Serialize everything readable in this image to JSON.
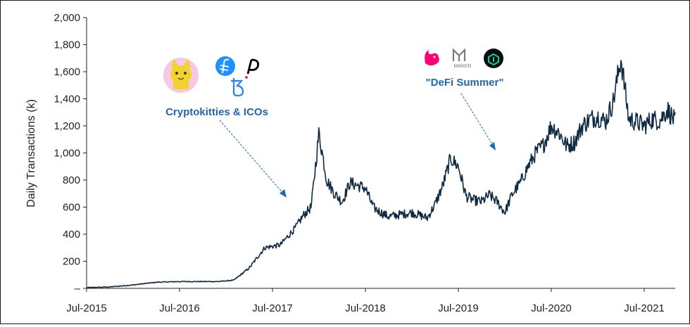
{
  "chart_data": {
    "type": "line",
    "title": "",
    "ylabel": "Daily Transactions (k)",
    "xlabel": "",
    "ylim": [
      0,
      2000
    ],
    "y_ticks": [
      "–",
      "200",
      "400",
      "600",
      "800",
      "1,000",
      "1,200",
      "1,400",
      "1,600",
      "1,800",
      "2,000"
    ],
    "x_ticks": [
      "Jul-2015",
      "Jul-2016",
      "Jul-2017",
      "Jul-2018",
      "Jul-2019",
      "Jul-2020",
      "Jul-2021"
    ],
    "grid": false,
    "legend": "none",
    "series": [
      {
        "x": [
          "2015-07",
          "2015-10",
          "2016-01",
          "2016-04",
          "2016-07",
          "2016-10",
          "2016-12",
          "2017-02",
          "2017-04",
          "2017-06",
          "2017-08",
          "2017-10",
          "2017-11",
          "2017-12",
          "2018-01",
          "2018-02",
          "2018-03",
          "2018-04",
          "2018-05",
          "2018-06",
          "2018-07",
          "2018-08",
          "2018-09",
          "2018-10",
          "2018-11",
          "2018-12",
          "2019-01",
          "2019-02",
          "2019-03",
          "2019-04",
          "2019-05",
          "2019-06",
          "2019-07",
          "2019-08",
          "2019-09",
          "2019-10",
          "2019-11",
          "2019-12",
          "2020-01",
          "2020-02",
          "2020-03",
          "2020-04",
          "2020-05",
          "2020-06",
          "2020-07",
          "2020-08",
          "2020-09",
          "2020-10",
          "2020-11",
          "2020-12",
          "2021-01",
          "2021-02",
          "2021-03",
          "2021-04",
          "2021-05",
          "2021-06",
          "2021-07",
          "2021-08",
          "2021-09",
          "2021-10",
          "2021-11"
        ],
        "values": [
          5,
          10,
          25,
          45,
          50,
          50,
          50,
          60,
          150,
          300,
          320,
          450,
          540,
          600,
          1150,
          800,
          700,
          640,
          780,
          760,
          740,
          600,
          560,
          530,
          540,
          550,
          560,
          540,
          520,
          620,
          760,
          960,
          900,
          680,
          650,
          640,
          690,
          640,
          560,
          700,
          780,
          900,
          1000,
          1060,
          1200,
          1150,
          1050,
          1080,
          1200,
          1250,
          1270,
          1230,
          1380,
          1700,
          1250,
          1230,
          1200,
          1250,
          1240,
          1320,
          1230
        ]
      }
    ],
    "annotations": [
      {
        "text": "Cryptokitties & ICOs"
      },
      {
        "text": "\"DeFi Summer\""
      }
    ],
    "line_color": "#0f2a44",
    "annotation_color": "#2167ad"
  },
  "icons": {
    "cryptokitties": "cryptokitties-logo-icon",
    "filecoin": "filecoin-logo-icon",
    "polkadot": "polkadot-logo-icon",
    "tezos": "tezos-logo-icon",
    "uniswap": "uniswap-logo-icon",
    "maker": "maker-logo-icon",
    "compound": "compound-logo-icon"
  },
  "logo_text": {
    "maker": "MAKER"
  }
}
